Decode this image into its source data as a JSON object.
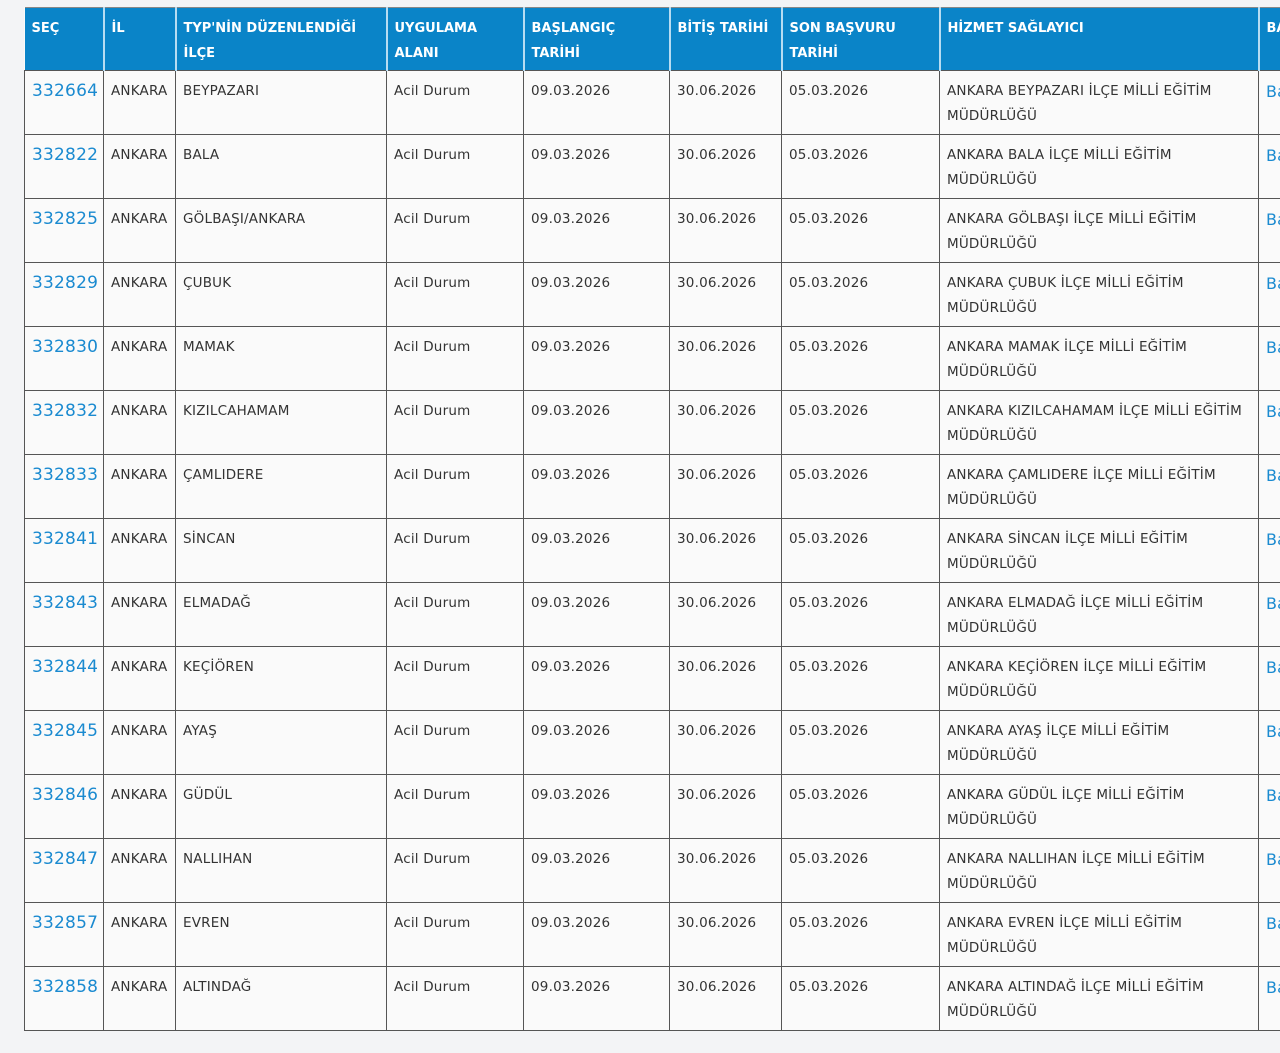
{
  "headers": [
    "SEÇ",
    "İL",
    "TYP'NİN DÜZENLENDİĞİ İLÇE",
    "UYGULAMA ALANI",
    "BAŞLANGIÇ TARİHİ",
    "BİTİŞ TARİHİ",
    "SON BAŞVURU TARİHİ",
    "HİZMET SAĞLAYICI",
    "BA İL"
  ],
  "accent_color": "#0a84c8",
  "link_color": "#1a8ad0",
  "rows": [
    {
      "id": "332664",
      "il": "ANKARA",
      "ilce": "BEYPAZARI",
      "alan": "Acil Durum",
      "baslangic": "09.03.2026",
      "bitis": "30.06.2026",
      "son": "05.03.2026",
      "saglayici": "ANKARA BEYPAZARI İLÇE MİLLİ EĞİTİM MÜDÜRLÜĞÜ",
      "last": "Ba İl"
    },
    {
      "id": "332822",
      "il": "ANKARA",
      "ilce": "BALA",
      "alan": "Acil Durum",
      "baslangic": "09.03.2026",
      "bitis": "30.06.2026",
      "son": "05.03.2026",
      "saglayici": "ANKARA BALA İLÇE MİLLİ EĞİTİM MÜDÜRLÜĞÜ",
      "last": "Ba İl"
    },
    {
      "id": "332825",
      "il": "ANKARA",
      "ilce": "GÖLBAŞI/ANKARA",
      "alan": "Acil Durum",
      "baslangic": "09.03.2026",
      "bitis": "30.06.2026",
      "son": "05.03.2026",
      "saglayici": "ANKARA GÖLBAŞI İLÇE MİLLİ EĞİTİM MÜDÜRLÜĞÜ",
      "last": "Ba İl"
    },
    {
      "id": "332829",
      "il": "ANKARA",
      "ilce": "ÇUBUK",
      "alan": "Acil Durum",
      "baslangic": "09.03.2026",
      "bitis": "30.06.2026",
      "son": "05.03.2026",
      "saglayici": "ANKARA ÇUBUK İLÇE MİLLİ EĞİTİM MÜDÜRLÜĞÜ",
      "last": "Ba İl"
    },
    {
      "id": "332830",
      "il": "ANKARA",
      "ilce": "MAMAK",
      "alan": "Acil Durum",
      "baslangic": "09.03.2026",
      "bitis": "30.06.2026",
      "son": "05.03.2026",
      "saglayici": "ANKARA MAMAK İLÇE MİLLİ EĞİTİM MÜDÜRLÜĞÜ",
      "last": "Ba İl"
    },
    {
      "id": "332832",
      "il": "ANKARA",
      "ilce": "KIZILCAHAMAM",
      "alan": "Acil Durum",
      "baslangic": "09.03.2026",
      "bitis": "30.06.2026",
      "son": "05.03.2026",
      "saglayici": "ANKARA KIZILCAHAMAM İLÇE MİLLİ EĞİTİM MÜDÜRLÜĞÜ",
      "last": "Ba İl"
    },
    {
      "id": "332833",
      "il": "ANKARA",
      "ilce": "ÇAMLIDERE",
      "alan": "Acil Durum",
      "baslangic": "09.03.2026",
      "bitis": "30.06.2026",
      "son": "05.03.2026",
      "saglayici": "ANKARA ÇAMLIDERE İLÇE MİLLİ EĞİTİM MÜDÜRLÜĞÜ",
      "last": "Ba İl"
    },
    {
      "id": "332841",
      "il": "ANKARA",
      "ilce": "SİNCAN",
      "alan": "Acil Durum",
      "baslangic": "09.03.2026",
      "bitis": "30.06.2026",
      "son": "05.03.2026",
      "saglayici": "ANKARA SİNCAN İLÇE MİLLİ EĞİTİM MÜDÜRLÜĞÜ",
      "last": "Ba İl"
    },
    {
      "id": "332843",
      "il": "ANKARA",
      "ilce": "ELMADAĞ",
      "alan": "Acil Durum",
      "baslangic": "09.03.2026",
      "bitis": "30.06.2026",
      "son": "05.03.2026",
      "saglayici": "ANKARA ELMADAĞ İLÇE MİLLİ EĞİTİM MÜDÜRLÜĞÜ",
      "last": "Ba İl"
    },
    {
      "id": "332844",
      "il": "ANKARA",
      "ilce": "KEÇİÖREN",
      "alan": "Acil Durum",
      "baslangic": "09.03.2026",
      "bitis": "30.06.2026",
      "son": "05.03.2026",
      "saglayici": "ANKARA KEÇİÖREN İLÇE MİLLİ EĞİTİM MÜDÜRLÜĞÜ",
      "last": "Ba İl"
    },
    {
      "id": "332845",
      "il": "ANKARA",
      "ilce": "AYAŞ",
      "alan": "Acil Durum",
      "baslangic": "09.03.2026",
      "bitis": "30.06.2026",
      "son": "05.03.2026",
      "saglayici": "ANKARA AYAŞ İLÇE MİLLİ EĞİTİM MÜDÜRLÜĞÜ",
      "last": "Ba İl"
    },
    {
      "id": "332846",
      "il": "ANKARA",
      "ilce": "GÜDÜL",
      "alan": "Acil Durum",
      "baslangic": "09.03.2026",
      "bitis": "30.06.2026",
      "son": "05.03.2026",
      "saglayici": "ANKARA GÜDÜL İLÇE MİLLİ EĞİTİM MÜDÜRLÜĞÜ",
      "last": "Ba İl"
    },
    {
      "id": "332847",
      "il": "ANKARA",
      "ilce": "NALLIHAN",
      "alan": "Acil Durum",
      "baslangic": "09.03.2026",
      "bitis": "30.06.2026",
      "son": "05.03.2026",
      "saglayici": "ANKARA NALLIHAN İLÇE MİLLİ EĞİTİM MÜDÜRLÜĞÜ",
      "last": "Ba İl"
    },
    {
      "id": "332857",
      "il": "ANKARA",
      "ilce": "EVREN",
      "alan": "Acil Durum",
      "baslangic": "09.03.2026",
      "bitis": "30.06.2026",
      "son": "05.03.2026",
      "saglayici": "ANKARA EVREN İLÇE MİLLİ EĞİTİM MÜDÜRLÜĞÜ",
      "last": "Ba İl"
    },
    {
      "id": "332858",
      "il": "ANKARA",
      "ilce": "ALTINDAĞ",
      "alan": "Acil Durum",
      "baslangic": "09.03.2026",
      "bitis": "30.06.2026",
      "son": "05.03.2026",
      "saglayici": "ANKARA ALTINDAĞ İLÇE MİLLİ EĞİTİM MÜDÜRLÜĞÜ",
      "last": "Ba İl"
    }
  ]
}
